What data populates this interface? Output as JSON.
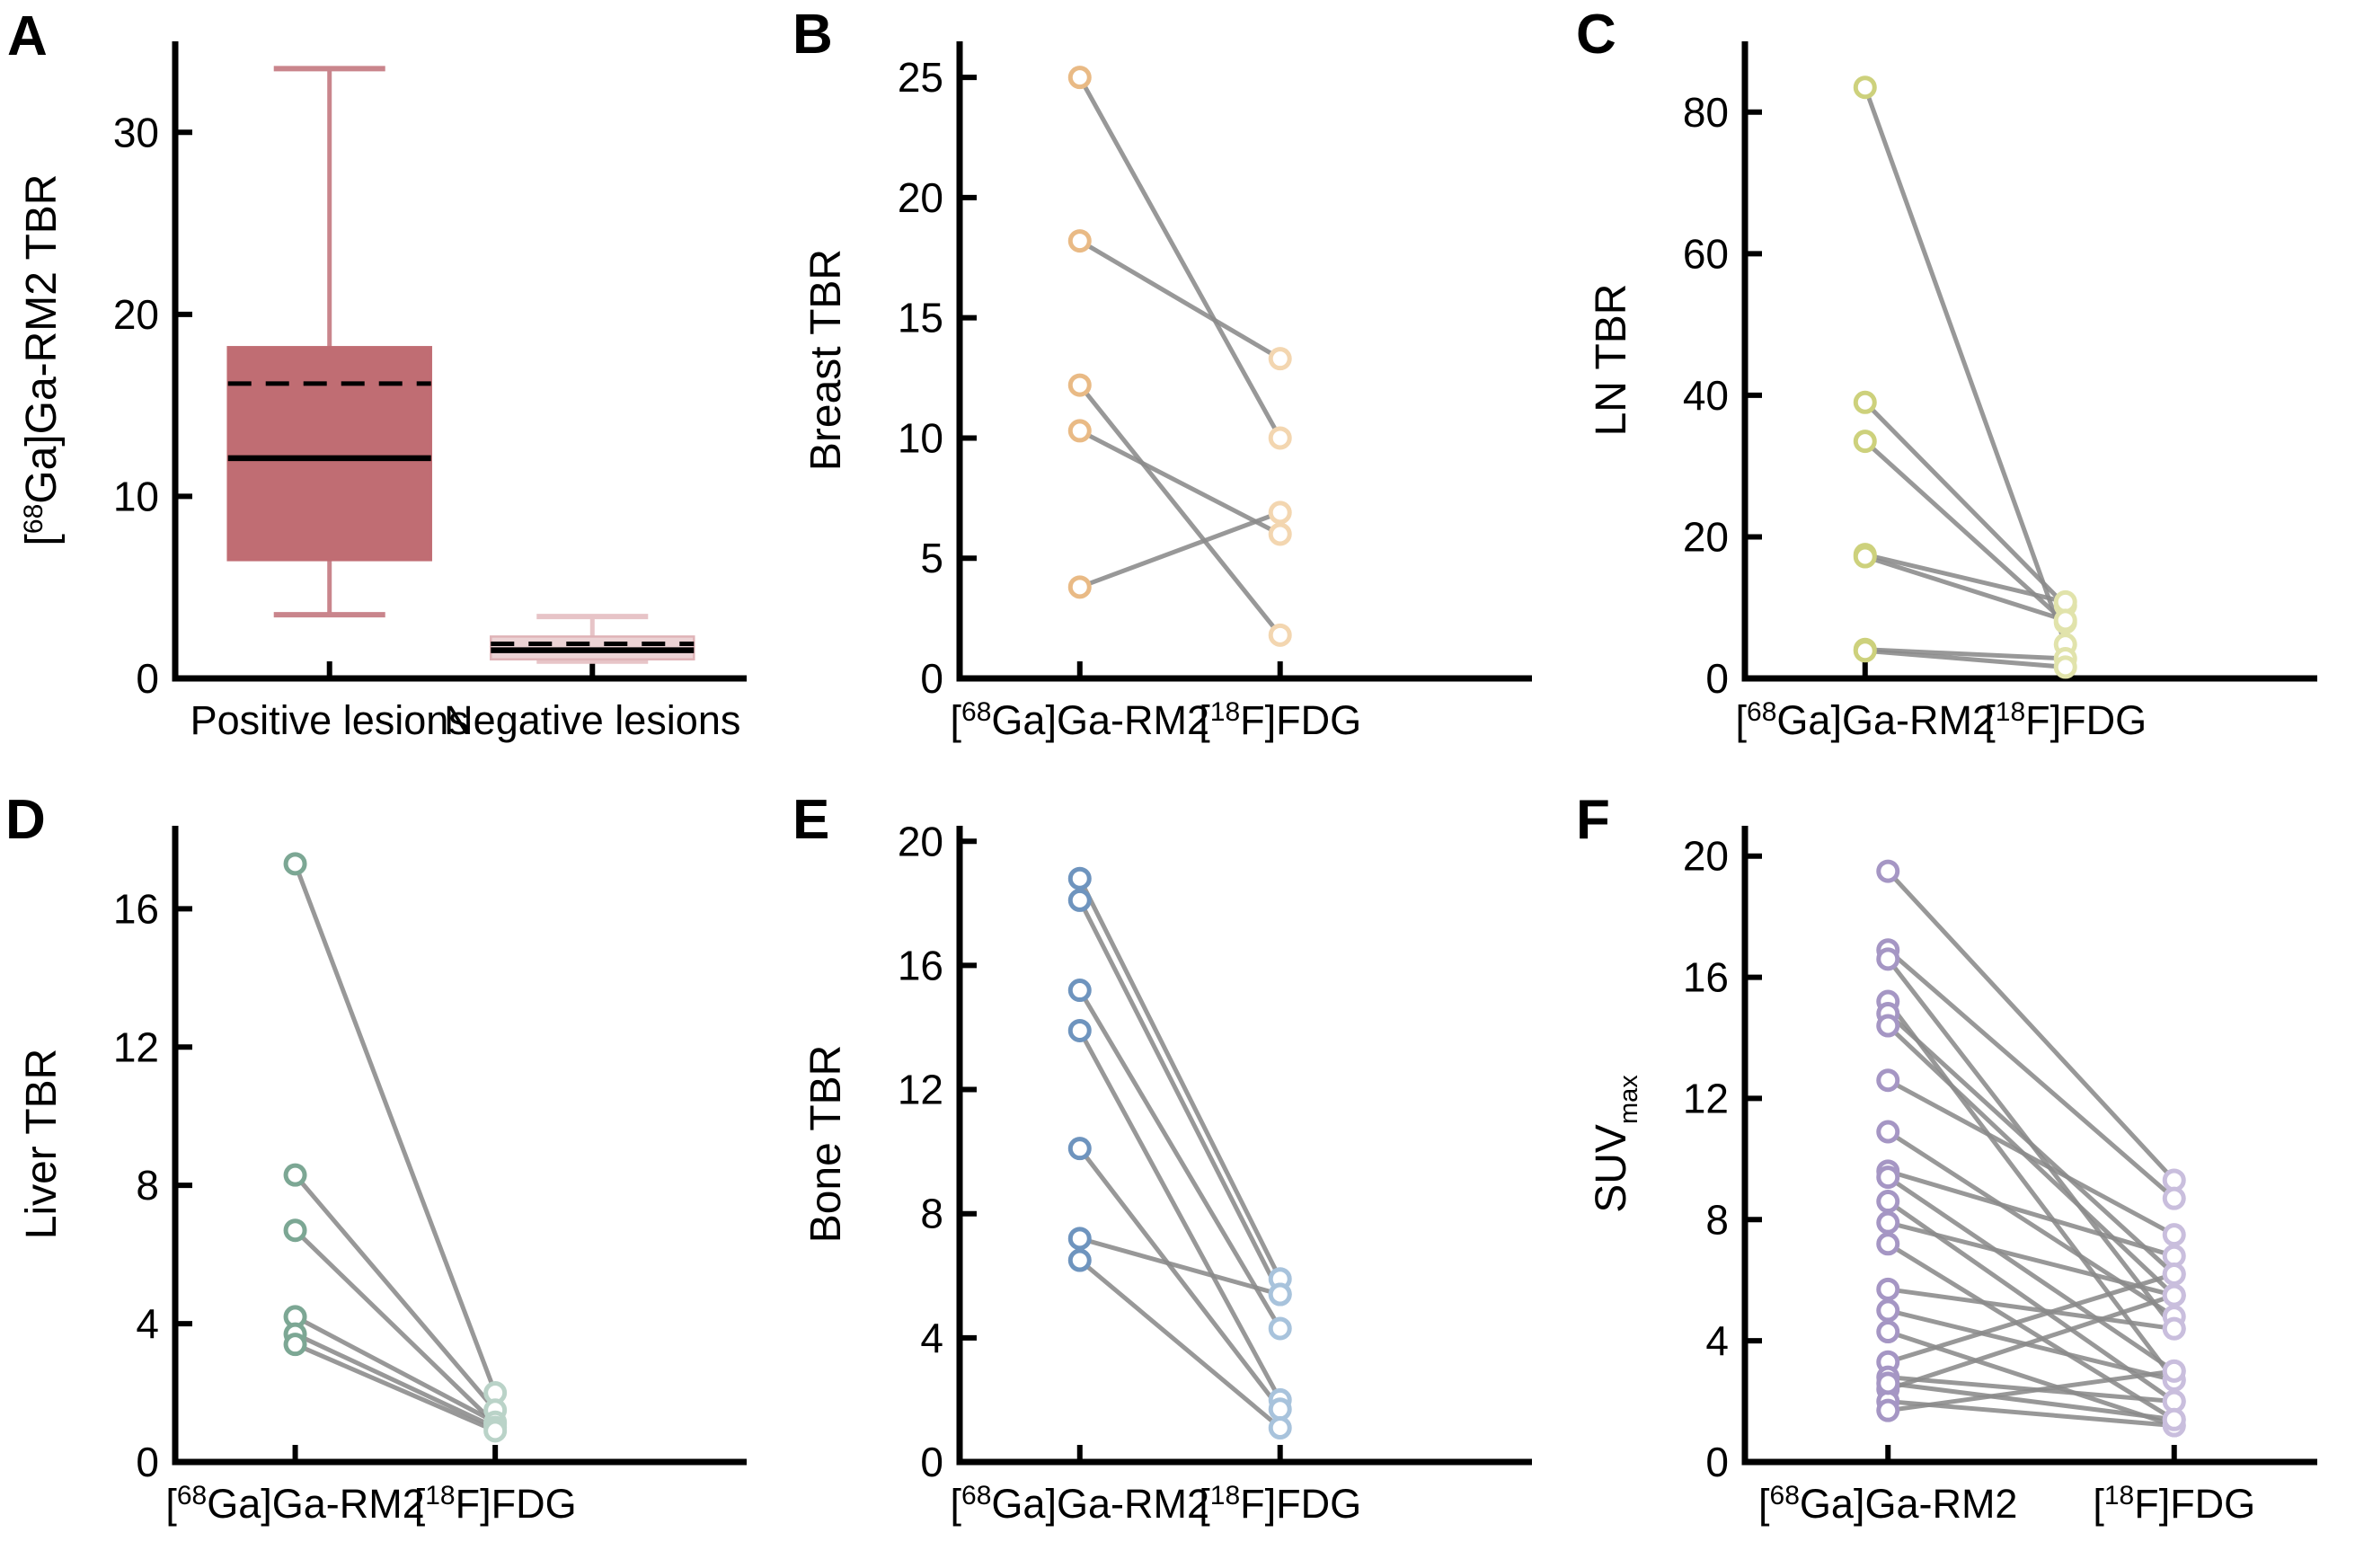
{
  "figure": {
    "background": "#ffffff",
    "axis_color": "#000000",
    "pair_line_color": "#8a8a8a",
    "text_color": "#000000"
  },
  "panel_letters": {
    "a": "A",
    "b": "B",
    "c": "C",
    "d": "D",
    "e": "E",
    "f": "F"
  },
  "chart_data": [
    {
      "panel": "A",
      "type": "box",
      "ylabel_text": "[68Ga]Ga-RM2 TBR",
      "ylabel_segments": [
        {
          "t": "["
        },
        {
          "t": "68",
          "sup": true
        },
        {
          "t": "Ga]Ga-RM2 TBR"
        }
      ],
      "ylim": [
        0,
        35
      ],
      "yticks": [
        0,
        10,
        20,
        30
      ],
      "categories_text": [
        "Positive lesions",
        "Negative lesions"
      ],
      "categories": [
        [
          {
            "t": "Positive lesions"
          }
        ],
        [
          {
            "t": "Negative lesions"
          }
        ]
      ],
      "cat_fracs": [
        0.27,
        0.73
      ],
      "grid": false,
      "median_color": "#000000",
      "mean_color": "#000000",
      "mean_style": "dashed",
      "boxes": [
        {
          "category": "Positive lesions",
          "whisker_low": 3.5,
          "q1": 6.5,
          "median": 12.1,
          "mean": 16.2,
          "q3": 18.2,
          "whisker_high": 33.5,
          "fill": "#c06d73",
          "edge": "#c06d73",
          "whisker": "#c9858c"
        },
        {
          "category": "Negative lesions",
          "whisker_low": 0.95,
          "q1": 1.05,
          "median": 1.55,
          "mean": 1.9,
          "q3": 2.3,
          "whisker_high": 3.4,
          "fill": "#ecd3d5",
          "edge": "#dfb3b7",
          "whisker": "#e7c4c7"
        }
      ]
    },
    {
      "panel": "B",
      "type": "paired-line",
      "ylabel_text": "Breast TBR",
      "ylabel_segments": [
        {
          "t": "Breast TBR"
        }
      ],
      "ylim": [
        0,
        26.5
      ],
      "yticks": [
        0,
        5,
        10,
        15,
        20,
        25
      ],
      "categories_text": [
        "[68Ga]Ga-RM2",
        "[18F]FDG"
      ],
      "categories": [
        [
          {
            "t": "["
          },
          {
            "t": "68",
            "sup": true
          },
          {
            "t": "Ga]Ga-RM2"
          }
        ],
        [
          {
            "t": "["
          },
          {
            "t": "18",
            "sup": true
          },
          {
            "t": "F]FDG"
          }
        ]
      ],
      "cat_fracs": [
        0.21,
        0.56
      ],
      "grid": false,
      "marker_left": "#e9ba85",
      "marker_right": "#f3d6b0",
      "pairs": [
        [
          25,
          10
        ],
        [
          18.2,
          13.3
        ],
        [
          12.2,
          1.8
        ],
        [
          10.3,
          6
        ],
        [
          3.8,
          6.9
        ]
      ]
    },
    {
      "panel": "C",
      "type": "paired-line",
      "ylabel_text": "LN TBR",
      "ylabel_segments": [
        {
          "t": "LN TBR"
        }
      ],
      "ylim": [
        0,
        90
      ],
      "yticks": [
        0,
        20,
        40,
        60,
        80
      ],
      "categories_text": [
        "[68Ga]Ga-RM2",
        "[18F]FDG"
      ],
      "categories": [
        [
          {
            "t": "["
          },
          {
            "t": "68",
            "sup": true
          },
          {
            "t": "Ga]Ga-RM2"
          }
        ],
        [
          {
            "t": "["
          },
          {
            "t": "18",
            "sup": true
          },
          {
            "t": "F]FDG"
          }
        ]
      ],
      "cat_fracs": [
        0.21,
        0.56
      ],
      "grid": false,
      "marker_left": "#cdd17c",
      "marker_right": "#e1e3ab",
      "pairs": [
        [
          83.5,
          4.8
        ],
        [
          39,
          10.3
        ],
        [
          33.5,
          7.9
        ],
        [
          17.5,
          10.8
        ],
        [
          17.2,
          8.2
        ],
        [
          4.1,
          2.8
        ],
        [
          3.9,
          1.6
        ]
      ]
    },
    {
      "panel": "D",
      "type": "paired-line",
      "ylabel_text": "Liver TBR",
      "ylabel_segments": [
        {
          "t": "Liver TBR"
        }
      ],
      "ylim": [
        0,
        18.4
      ],
      "yticks": [
        0,
        4,
        8,
        12,
        16
      ],
      "categories_text": [
        "[68Ga]Ga-RM2",
        "[18F]FDG"
      ],
      "categories": [
        [
          {
            "t": "["
          },
          {
            "t": "68",
            "sup": true
          },
          {
            "t": "Ga]Ga-RM2"
          }
        ],
        [
          {
            "t": "["
          },
          {
            "t": "18",
            "sup": true
          },
          {
            "t": "F]FDG"
          }
        ]
      ],
      "cat_fracs": [
        0.21,
        0.56
      ],
      "grid": false,
      "marker_left": "#7ca794",
      "marker_right": "#bad3c8",
      "pairs": [
        [
          17.3,
          2.0
        ],
        [
          8.3,
          1.5
        ],
        [
          6.7,
          1.1
        ],
        [
          4.2,
          1.15
        ],
        [
          3.7,
          1.0
        ],
        [
          3.4,
          0.9
        ]
      ]
    },
    {
      "panel": "E",
      "type": "paired-line",
      "ylabel_text": "Bone TBR",
      "ylabel_segments": [
        {
          "t": "Bone TBR"
        }
      ],
      "ylim": [
        0,
        20.5
      ],
      "yticks": [
        0,
        4,
        8,
        12,
        16,
        20
      ],
      "categories_text": [
        "[68Ga]Ga-RM2",
        "[18F]FDG"
      ],
      "categories": [
        [
          {
            "t": "["
          },
          {
            "t": "68",
            "sup": true
          },
          {
            "t": "Ga]Ga-RM2"
          }
        ],
        [
          {
            "t": "["
          },
          {
            "t": "18",
            "sup": true
          },
          {
            "t": "F]FDG"
          }
        ]
      ],
      "cat_fracs": [
        0.21,
        0.56
      ],
      "grid": false,
      "marker_left": "#6e94be",
      "marker_right": "#a8c3dc",
      "pairs": [
        [
          18.8,
          5.9
        ],
        [
          18.1,
          5.4
        ],
        [
          15.2,
          4.3
        ],
        [
          13.9,
          2.0
        ],
        [
          10.1,
          1.7
        ],
        [
          7.2,
          5.4
        ],
        [
          6.5,
          1.1
        ]
      ]
    },
    {
      "panel": "F",
      "type": "paired-line",
      "ylabel_text": "SUVmax",
      "ylabel_segments": [
        {
          "t": "SUV"
        },
        {
          "t": "max",
          "sub": true
        }
      ],
      "ylim": [
        0,
        21
      ],
      "yticks": [
        0,
        4,
        8,
        12,
        16,
        20
      ],
      "categories_text": [
        "[68Ga]Ga-RM2",
        "[18F]FDG"
      ],
      "categories": [
        [
          {
            "t": "["
          },
          {
            "t": "68",
            "sup": true
          },
          {
            "t": "Ga]Ga-RM2"
          }
        ],
        [
          {
            "t": "["
          },
          {
            "t": "18",
            "sup": true
          },
          {
            "t": "F]FDG"
          }
        ]
      ],
      "cat_fracs": [
        0.25,
        0.75
      ],
      "grid": false,
      "marker_left": "#a596c4",
      "marker_right": "#c9bedd",
      "pairs": [
        [
          19.5,
          9.3
        ],
        [
          16.9,
          8.7
        ],
        [
          16.6,
          4.4
        ],
        [
          15.2,
          2.7
        ],
        [
          14.8,
          6.2
        ],
        [
          14.4,
          5.5
        ],
        [
          12.6,
          7.5
        ],
        [
          10.9,
          4.8
        ],
        [
          9.6,
          6.8
        ],
        [
          9.4,
          3.0
        ],
        [
          8.6,
          2.0
        ],
        [
          7.9,
          5.5
        ],
        [
          7.2,
          1.4
        ],
        [
          5.7,
          4.4
        ],
        [
          5.0,
          2.7
        ],
        [
          4.3,
          1.2
        ],
        [
          3.3,
          6.2
        ],
        [
          2.8,
          2.0
        ],
        [
          2.4,
          5.5
        ],
        [
          2.0,
          1.2
        ],
        [
          1.7,
          3.0
        ],
        [
          2.6,
          1.4
        ]
      ]
    }
  ]
}
